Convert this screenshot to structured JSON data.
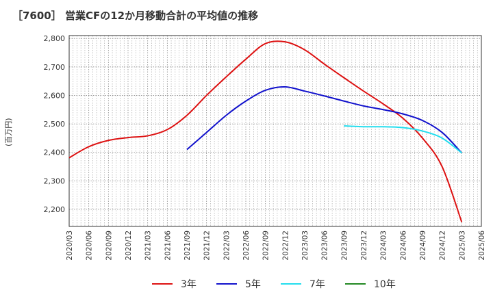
{
  "title": "［7600］ 営業CFの12か月移動合計の平均値の推移",
  "y_axis_label": "(百万円)",
  "chart_data": {
    "type": "line",
    "title": "［7600］ 営業CFの12か月移動合計の平均値の推移",
    "ylabel": "(百万円)",
    "ylim": [
      2140,
      2810
    ],
    "y_ticks": [
      2200,
      2300,
      2400,
      2500,
      2600,
      2700,
      2800
    ],
    "y_tick_labels": [
      "2,200",
      "2,300",
      "2,400",
      "2,500",
      "2,600",
      "2,700",
      "2,800"
    ],
    "x_tick_labels": [
      "2020/03",
      "2020/06",
      "2020/09",
      "2020/12",
      "2021/03",
      "2021/06",
      "2021/09",
      "2021/12",
      "2022/03",
      "2022/06",
      "2022/09",
      "2022/12",
      "2023/03",
      "2023/06",
      "2023/09",
      "2023/12",
      "2024/03",
      "2024/06",
      "2024/09",
      "2024/12",
      "2025/03",
      "2025/06"
    ],
    "grid": true,
    "legend_position": "bottom",
    "series": [
      {
        "name": "3年",
        "color": "#dd1111",
        "points": [
          [
            "2020/03",
            2381
          ],
          [
            "2020/06",
            2420
          ],
          [
            "2020/09",
            2442
          ],
          [
            "2020/12",
            2452
          ],
          [
            "2021/03",
            2458
          ],
          [
            "2021/06",
            2480
          ],
          [
            "2021/09",
            2530
          ],
          [
            "2021/12",
            2600
          ],
          [
            "2022/03",
            2665
          ],
          [
            "2022/06",
            2727
          ],
          [
            "2022/09",
            2782
          ],
          [
            "2022/12",
            2788
          ],
          [
            "2023/03",
            2760
          ],
          [
            "2023/06",
            2710
          ],
          [
            "2023/09",
            2662
          ],
          [
            "2023/12",
            2615
          ],
          [
            "2024/03",
            2570
          ],
          [
            "2024/06",
            2520
          ],
          [
            "2024/09",
            2450
          ],
          [
            "2024/12",
            2350
          ],
          [
            "2025/03",
            2155
          ]
        ]
      },
      {
        "name": "5年",
        "color": "#1111cc",
        "points": [
          [
            "2021/09",
            2410
          ],
          [
            "2021/12",
            2470
          ],
          [
            "2022/03",
            2530
          ],
          [
            "2022/06",
            2580
          ],
          [
            "2022/09",
            2618
          ],
          [
            "2022/12",
            2630
          ],
          [
            "2023/03",
            2615
          ],
          [
            "2023/06",
            2598
          ],
          [
            "2023/09",
            2580
          ],
          [
            "2023/12",
            2563
          ],
          [
            "2024/03",
            2550
          ],
          [
            "2024/06",
            2535
          ],
          [
            "2024/09",
            2512
          ],
          [
            "2024/12",
            2470
          ],
          [
            "2025/03",
            2398
          ]
        ]
      },
      {
        "name": "7年",
        "color": "#22ddee",
        "points": [
          [
            "2023/09",
            2493
          ],
          [
            "2023/12",
            2490
          ],
          [
            "2024/03",
            2490
          ],
          [
            "2024/06",
            2487
          ],
          [
            "2024/09",
            2475
          ],
          [
            "2024/12",
            2450
          ],
          [
            "2025/03",
            2398
          ]
        ]
      },
      {
        "name": "10年",
        "color": "#228822",
        "points": []
      }
    ]
  }
}
